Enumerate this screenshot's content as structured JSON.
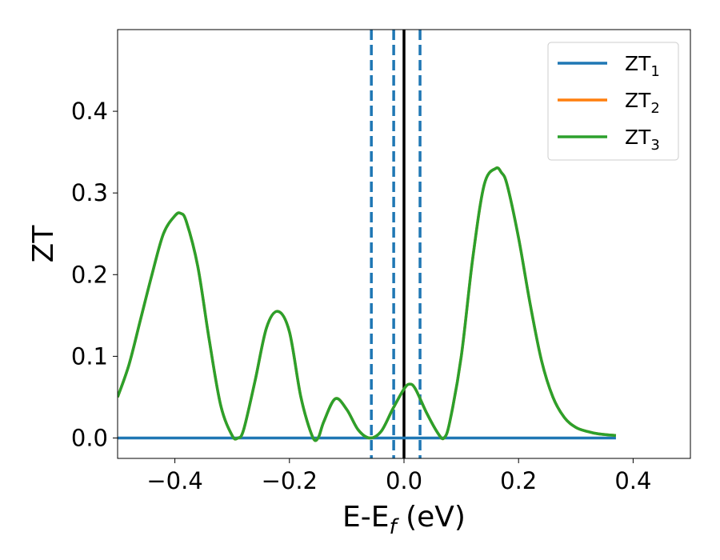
{
  "chart_data": {
    "type": "line",
    "xlabel": "E-E",
    "xlabel_sub": "f",
    "xlabel_unit": " (eV)",
    "ylabel": "ZT",
    "xlim": [
      -0.5,
      0.5
    ],
    "ylim": [
      -0.025,
      0.5
    ],
    "xticks": [
      -0.4,
      -0.2,
      0.0,
      0.2,
      0.4
    ],
    "xtick_labels": [
      "−0.4",
      "−0.2",
      "0.0",
      "0.2",
      "0.4"
    ],
    "yticks": [
      0.0,
      0.1,
      0.2,
      0.3,
      0.4
    ],
    "ytick_labels": [
      "0.0",
      "0.1",
      "0.2",
      "0.3",
      "0.4"
    ],
    "legend_placement": "top-right",
    "grid": false,
    "series": [
      {
        "name": "ZT",
        "name_sub": "1",
        "color": "#1f77b4",
        "x": [
          -0.5,
          0.37
        ],
        "y": [
          0.0,
          0.0
        ]
      },
      {
        "name": "ZT",
        "name_sub": "2",
        "color": "#ff7f0e",
        "x": [
          -0.5,
          -0.48,
          -0.46,
          -0.44,
          -0.42,
          -0.4,
          -0.39,
          -0.38,
          -0.36,
          -0.34,
          -0.32,
          -0.3,
          -0.29,
          -0.28,
          -0.26,
          -0.24,
          -0.22,
          -0.2,
          -0.18,
          -0.16,
          -0.15,
          -0.14,
          -0.12,
          -0.1,
          -0.08,
          -0.06,
          -0.04,
          -0.02,
          0.0,
          0.01,
          0.02,
          0.04,
          0.06,
          0.07,
          0.08,
          0.1,
          0.12,
          0.14,
          0.16,
          0.17,
          0.18,
          0.2,
          0.22,
          0.24,
          0.26,
          0.28,
          0.3,
          0.32,
          0.34,
          0.37
        ],
        "y": [
          0.05,
          0.09,
          0.145,
          0.2,
          0.25,
          0.272,
          0.275,
          0.265,
          0.21,
          0.12,
          0.04,
          0.003,
          0.0,
          0.01,
          0.07,
          0.135,
          0.155,
          0.13,
          0.05,
          0.002,
          0.0,
          0.02,
          0.048,
          0.035,
          0.01,
          0.0,
          0.008,
          0.035,
          0.06,
          0.066,
          0.06,
          0.03,
          0.005,
          0.0,
          0.02,
          0.1,
          0.22,
          0.31,
          0.33,
          0.325,
          0.31,
          0.245,
          0.165,
          0.095,
          0.05,
          0.025,
          0.013,
          0.008,
          0.005,
          0.003
        ]
      },
      {
        "name": "ZT",
        "name_sub": "3",
        "color": "#2ca02c",
        "x": [
          -0.5,
          -0.48,
          -0.46,
          -0.44,
          -0.42,
          -0.4,
          -0.39,
          -0.38,
          -0.36,
          -0.34,
          -0.32,
          -0.3,
          -0.29,
          -0.28,
          -0.26,
          -0.24,
          -0.22,
          -0.2,
          -0.18,
          -0.16,
          -0.15,
          -0.14,
          -0.12,
          -0.1,
          -0.08,
          -0.06,
          -0.04,
          -0.02,
          0.0,
          0.01,
          0.02,
          0.04,
          0.06,
          0.07,
          0.08,
          0.1,
          0.12,
          0.14,
          0.16,
          0.17,
          0.18,
          0.2,
          0.22,
          0.24,
          0.26,
          0.28,
          0.3,
          0.32,
          0.34,
          0.37
        ],
        "y": [
          0.05,
          0.09,
          0.145,
          0.2,
          0.25,
          0.272,
          0.275,
          0.265,
          0.21,
          0.12,
          0.04,
          0.003,
          0.0,
          0.01,
          0.07,
          0.135,
          0.155,
          0.13,
          0.05,
          0.002,
          0.0,
          0.02,
          0.048,
          0.035,
          0.01,
          0.0,
          0.008,
          0.035,
          0.06,
          0.066,
          0.06,
          0.03,
          0.005,
          0.0,
          0.02,
          0.1,
          0.22,
          0.31,
          0.33,
          0.325,
          0.31,
          0.245,
          0.165,
          0.095,
          0.05,
          0.025,
          0.013,
          0.008,
          0.005,
          0.003
        ]
      }
    ],
    "vlines": [
      {
        "x": -0.057,
        "style": "dashed",
        "color": "#1f77b4"
      },
      {
        "x": -0.018,
        "style": "dashed",
        "color": "#1f77b4"
      },
      {
        "x": 0.0,
        "style": "solid",
        "color": "#000000"
      },
      {
        "x": 0.028,
        "style": "dashed",
        "color": "#1f77b4"
      }
    ]
  }
}
